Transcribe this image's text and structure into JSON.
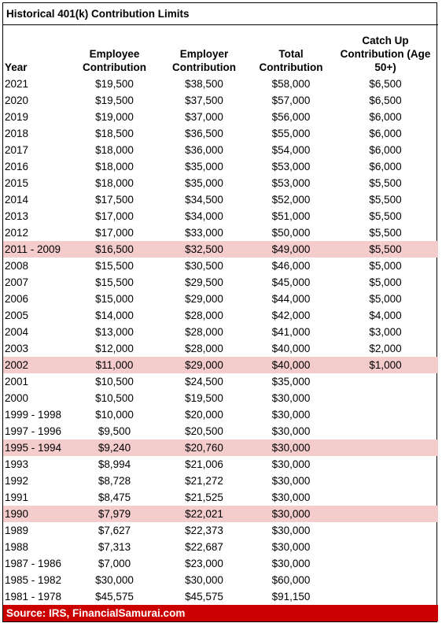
{
  "title": "Historical 401(k) Contribution Limits",
  "headers": {
    "year": "Year",
    "employee": "Employee Contribution",
    "employer": "Employer Contribution",
    "total": "Total Contribution",
    "catchup": "Catch Up Contribution (Age 50+)"
  },
  "highlight_color": "#f4cccc",
  "footer_color": "#cc0000",
  "rows": [
    {
      "year": "2021",
      "employee": "$19,500",
      "employer": "$38,500",
      "total": "$58,000",
      "catchup": "$6,500",
      "highlight": false
    },
    {
      "year": "2020",
      "employee": "$19,500",
      "employer": "$37,500",
      "total": "$57,000",
      "catchup": "$6,500",
      "highlight": false
    },
    {
      "year": "2019",
      "employee": "$19,000",
      "employer": "$37,000",
      "total": "$56,000",
      "catchup": "$6,000",
      "highlight": false
    },
    {
      "year": "2018",
      "employee": "$18,500",
      "employer": "$36,500",
      "total": "$55,000",
      "catchup": "$6,000",
      "highlight": false
    },
    {
      "year": "2017",
      "employee": "$18,000",
      "employer": "$36,000",
      "total": "$54,000",
      "catchup": "$6,000",
      "highlight": false
    },
    {
      "year": "2016",
      "employee": "$18,000",
      "employer": "$35,000",
      "total": "$53,000",
      "catchup": "$6,000",
      "highlight": false
    },
    {
      "year": "2015",
      "employee": "$18,000",
      "employer": "$35,000",
      "total": "$53,000",
      "catchup": "$5,500",
      "highlight": false
    },
    {
      "year": "2014",
      "employee": "$17,500",
      "employer": "$34,500",
      "total": "$52,000",
      "catchup": "$5,500",
      "highlight": false
    },
    {
      "year": "2013",
      "employee": "$17,000",
      "employer": "$34,000",
      "total": "$51,000",
      "catchup": "$5,500",
      "highlight": false
    },
    {
      "year": "2012",
      "employee": "$17,000",
      "employer": "$33,000",
      "total": "$50,000",
      "catchup": "$5,500",
      "highlight": false
    },
    {
      "year": "2011 - 2009",
      "employee": "$16,500",
      "employer": "$32,500",
      "total": "$49,000",
      "catchup": "$5,500",
      "highlight": true
    },
    {
      "year": "2008",
      "employee": "$15,500",
      "employer": "$30,500",
      "total": "$46,000",
      "catchup": "$5,000",
      "highlight": false
    },
    {
      "year": "2007",
      "employee": "$15,500",
      "employer": "$29,500",
      "total": "$45,000",
      "catchup": "$5,000",
      "highlight": false
    },
    {
      "year": "2006",
      "employee": "$15,000",
      "employer": "$29,000",
      "total": "$44,000",
      "catchup": "$5,000",
      "highlight": false
    },
    {
      "year": "2005",
      "employee": "$14,000",
      "employer": "$28,000",
      "total": "$42,000",
      "catchup": "$4,000",
      "highlight": false
    },
    {
      "year": "2004",
      "employee": "$13,000",
      "employer": "$28,000",
      "total": "$41,000",
      "catchup": "$3,000",
      "highlight": false
    },
    {
      "year": "2003",
      "employee": "$12,000",
      "employer": "$28,000",
      "total": "$40,000",
      "catchup": "$2,000",
      "highlight": false
    },
    {
      "year": "2002",
      "employee": "$11,000",
      "employer": "$29,000",
      "total": "$40,000",
      "catchup": "$1,000",
      "highlight": true
    },
    {
      "year": "2001",
      "employee": "$10,500",
      "employer": "$24,500",
      "total": "$35,000",
      "catchup": "",
      "highlight": false
    },
    {
      "year": "2000",
      "employee": "$10,500",
      "employer": "$19,500",
      "total": "$30,000",
      "catchup": "",
      "highlight": false
    },
    {
      "year": "1999 - 1998",
      "employee": "$10,000",
      "employer": "$20,000",
      "total": "$30,000",
      "catchup": "",
      "highlight": false
    },
    {
      "year": "1997 - 1996",
      "employee": "$9,500",
      "employer": "$20,500",
      "total": "$30,000",
      "catchup": "",
      "highlight": false
    },
    {
      "year": "1995 - 1994",
      "employee": "$9,240",
      "employer": "$20,760",
      "total": "$30,000",
      "catchup": "",
      "highlight": true
    },
    {
      "year": "1993",
      "employee": "$8,994",
      "employer": "$21,006",
      "total": "$30,000",
      "catchup": "",
      "highlight": false
    },
    {
      "year": "1992",
      "employee": "$8,728",
      "employer": "$21,272",
      "total": "$30,000",
      "catchup": "",
      "highlight": false
    },
    {
      "year": "1991",
      "employee": "$8,475",
      "employer": "$21,525",
      "total": "$30,000",
      "catchup": "",
      "highlight": false
    },
    {
      "year": "1990",
      "employee": "$7,979",
      "employer": "$22,021",
      "total": "$30,000",
      "catchup": "",
      "highlight": true
    },
    {
      "year": "1989",
      "employee": "$7,627",
      "employer": "$22,373",
      "total": "$30,000",
      "catchup": "",
      "highlight": false
    },
    {
      "year": "1988",
      "employee": "$7,313",
      "employer": "$22,687",
      "total": "$30,000",
      "catchup": "",
      "highlight": false
    },
    {
      "year": "1987 - 1986",
      "employee": "$7,000",
      "employer": "$23,000",
      "total": "$30,000",
      "catchup": "",
      "highlight": false
    },
    {
      "year": "1985 - 1982",
      "employee": "$30,000",
      "employer": "$30,000",
      "total": "$60,000",
      "catchup": "",
      "highlight": false
    },
    {
      "year": "1981 - 1978",
      "employee": "$45,575",
      "employer": "$45,575",
      "total": "$91,150",
      "catchup": "",
      "highlight": false
    }
  ],
  "footer": "Source: IRS, FinancialSamurai.com"
}
